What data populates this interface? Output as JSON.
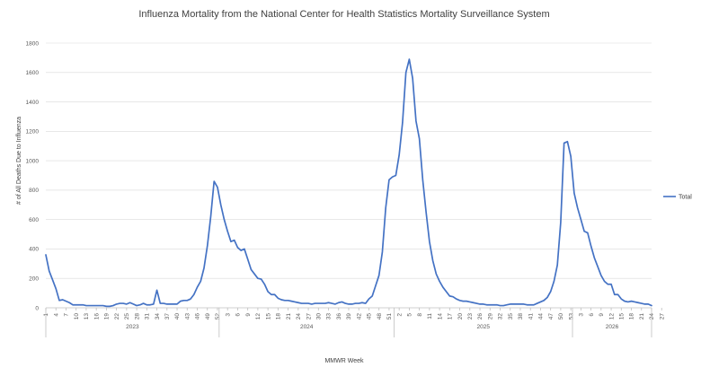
{
  "chart_data": {
    "type": "line",
    "title": "Influenza Mortality from the National Center for Health Statistics Mortality Surveillance System",
    "xlabel": "MMWR Week",
    "ylabel": "# of All Deaths Due to Influenza",
    "ylim": [
      0,
      1800
    ],
    "yticks": [
      0,
      200,
      400,
      600,
      800,
      1000,
      1200,
      1400,
      1600,
      1800
    ],
    "grid": true,
    "legend_position": "right",
    "series_color": "#4472C4",
    "years": [
      {
        "label": "2023",
        "weeks": 52,
        "ticks": [
          1,
          4,
          7,
          10,
          13,
          16,
          19,
          22,
          25,
          28,
          31,
          34,
          37,
          40,
          43,
          46,
          49,
          52
        ]
      },
      {
        "label": "2024",
        "weeks": 52,
        "ticks": [
          3,
          6,
          9,
          12,
          15,
          18,
          21,
          24,
          27,
          30,
          33,
          36,
          39,
          42,
          45,
          48,
          51
        ]
      },
      {
        "label": "2025",
        "weeks": 53,
        "ticks": [
          2,
          5,
          8,
          11,
          14,
          17,
          20,
          23,
          26,
          29,
          32,
          35,
          38,
          41,
          44,
          47,
          50,
          53
        ]
      },
      {
        "label": "2026",
        "weeks": 28,
        "ticks": [
          3,
          6,
          9,
          12,
          15,
          18,
          21,
          24,
          27
        ]
      }
    ],
    "series": [
      {
        "name": "Total",
        "values": [
          360,
          250,
          190,
          130,
          50,
          55,
          45,
          35,
          20,
          20,
          20,
          20,
          15,
          15,
          15,
          15,
          15,
          15,
          10,
          10,
          15,
          25,
          30,
          30,
          25,
          35,
          25,
          15,
          20,
          30,
          20,
          20,
          25,
          120,
          30,
          30,
          25,
          25,
          25,
          25,
          45,
          50,
          50,
          60,
          90,
          140,
          180,
          270,
          420,
          620,
          860,
          820,
          700,
          600,
          520,
          450,
          460,
          410,
          390,
          400,
          330,
          260,
          230,
          200,
          195,
          160,
          110,
          90,
          90,
          65,
          55,
          50,
          50,
          45,
          40,
          35,
          30,
          30,
          30,
          25,
          30,
          30,
          30,
          30,
          35,
          30,
          25,
          35,
          40,
          30,
          25,
          25,
          30,
          30,
          35,
          30,
          60,
          80,
          150,
          220,
          380,
          680,
          870,
          890,
          900,
          1040,
          1260,
          1600,
          1690,
          1560,
          1270,
          1150,
          870,
          650,
          450,
          320,
          230,
          180,
          140,
          110,
          80,
          75,
          60,
          50,
          45,
          45,
          40,
          35,
          30,
          25,
          25,
          20,
          20,
          20,
          20,
          15,
          15,
          20,
          25,
          25,
          25,
          25,
          25,
          20,
          20,
          20,
          30,
          40,
          50,
          70,
          110,
          180,
          290,
          580,
          1120,
          1130,
          1030,
          780,
          680,
          600,
          520,
          510,
          420,
          340,
          280,
          220,
          180,
          160,
          160,
          90,
          90,
          60,
          45,
          40,
          45,
          40,
          35,
          30,
          25,
          25,
          15
        ]
      }
    ]
  }
}
